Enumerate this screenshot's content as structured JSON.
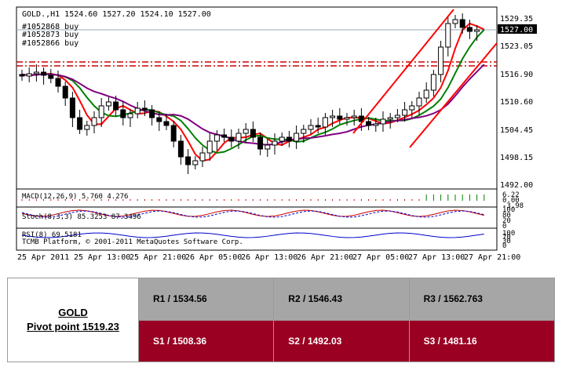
{
  "chart": {
    "header": "GOLD.,H1  1524.60 1527.20 1524.10 1527.00",
    "orders": [
      "#1052868 buy",
      "#1052873 buy",
      "#1052866 buy"
    ],
    "price_ticks": [
      "1529.35",
      "1523.05",
      "1516.90",
      "1510.60",
      "1504.45",
      "1498.15",
      "1492.00"
    ],
    "current_price": "1527.00",
    "time_ticks": [
      "25 Apr 2011",
      "25 Apr 13:00",
      "25 Apr 21:00",
      "26 Apr 05:00",
      "26 Apr 13:00",
      "26 Apr 21:00",
      "27 Apr 05:00",
      "27 Apr 13:00",
      "27 Apr 21:00"
    ],
    "macd": {
      "label": "MACD(12,26,9) 5.760 4.276",
      "ticks": [
        "6.22",
        "0.00",
        "-3.98"
      ]
    },
    "stoch": {
      "label": "Stoch(8,3,3) 85.3253 87.3496",
      "ticks": [
        "100",
        "80",
        "20",
        "0"
      ]
    },
    "rsi": {
      "label": "RSI(8) 69.5181",
      "ticks": [
        "100",
        "70",
        "30",
        "0"
      ]
    },
    "copyright": "TCMB Platform, © 2001-2011 MetaQuotes Software Corp.",
    "colors": {
      "bull": "#ffffff",
      "bear": "#000000",
      "ma_fast": "#ff0000",
      "ma_mid": "#008000",
      "ma_slow": "#800080",
      "trend": "#ff0000",
      "support_line": "#cc0000"
    }
  },
  "pivot": {
    "symbol": "GOLD",
    "pivot_label": "Pivot point 1519.23",
    "r1": "R1 / 1534.56",
    "r2": "R2 / 1546.43",
    "r3": "R3 / 1562.763",
    "s1": "S1 / 1508.36",
    "s2": "S2 / 1492.03",
    "s3": "S3 / 1481.16",
    "colors": {
      "resistance_bg": "#a6a6a6",
      "support_bg": "#990022"
    }
  }
}
